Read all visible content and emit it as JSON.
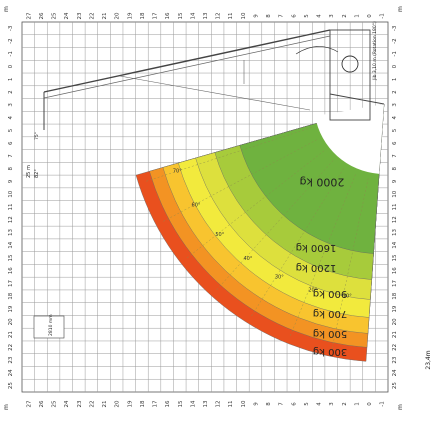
{
  "diagram": {
    "axis_unit": "m",
    "top_scale": [
      "27",
      "26",
      "25",
      "24",
      "23",
      "22",
      "21",
      "20",
      "19",
      "18",
      "17",
      "16",
      "15",
      "14",
      "13",
      "12",
      "11",
      "10",
      "9",
      "8",
      "7",
      "6",
      "5",
      "4",
      "3",
      "2",
      "1",
      "0",
      "-1"
    ],
    "side_scale": [
      "-3",
      "-2",
      "-1",
      "0",
      "1",
      "2",
      "3",
      "4",
      "5",
      "6",
      "7",
      "8",
      "9",
      "10",
      "11",
      "12",
      "13",
      "14",
      "15",
      "16",
      "17",
      "18",
      "19",
      "20",
      "21",
      "22",
      "23",
      "24",
      "25"
    ],
    "height_label": "23,4m",
    "zones": [
      {
        "label": "2000 kg",
        "color": "#6fb23f"
      },
      {
        "label": "1600 kg",
        "color": "#a7cb3b"
      },
      {
        "label": "1200 kg",
        "color": "#dde03d"
      },
      {
        "label": "900 kg",
        "color": "#f2ea3d"
      },
      {
        "label": "700 kg",
        "color": "#f8c42f"
      },
      {
        "label": "500 kg",
        "color": "#f39323"
      },
      {
        "label": "300 kg",
        "color": "#e9501e"
      }
    ],
    "angle_labels": [
      "70°",
      "60°",
      "50°",
      "40°",
      "30°",
      "20°",
      "10°"
    ],
    "boom_labels": {
      "tip_label": "25 m",
      "tip_angle": "82°",
      "tip_angle_small": "75°",
      "basket_note": "Jib 3,10 m (Rotation 180°)"
    },
    "scale_box_label": "2810 mm"
  }
}
